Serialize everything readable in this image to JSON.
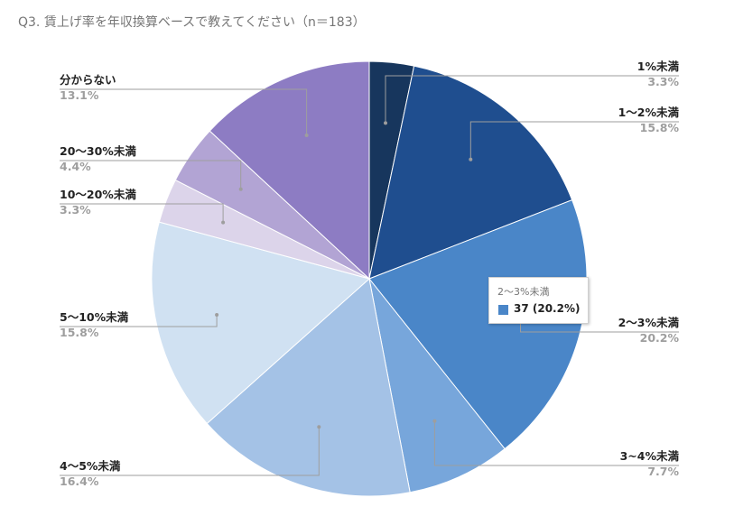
{
  "chart_data": {
    "type": "pie",
    "title": "Q3.  賃上げ率を年収換算ベースで教えてください（n＝183）",
    "n": 183,
    "slices": [
      {
        "label": "1%未満",
        "percent_label": "3.3%",
        "value": 3.3,
        "color": "#17365d"
      },
      {
        "label": "1～2%未満",
        "percent_label": "15.8%",
        "value": 15.8,
        "color": "#1f4e8f"
      },
      {
        "label": "2～3%未満",
        "percent_label": "20.2%",
        "value": 20.2,
        "color": "#4a86c8"
      },
      {
        "label": "3~4%未満",
        "percent_label": "7.7%",
        "value": 7.7,
        "color": "#77a6db"
      },
      {
        "label": "4～5%未満",
        "percent_label": "16.4%",
        "value": 16.4,
        "color": "#a4c2e6"
      },
      {
        "label": "5～10%未満",
        "percent_label": "15.8%",
        "value": 15.8,
        "color": "#d0e1f2"
      },
      {
        "label": "10～20%未満",
        "percent_label": "3.3%",
        "value": 3.3,
        "color": "#dcd4ea"
      },
      {
        "label": "20～30%未満",
        "percent_label": "4.4%",
        "value": 4.4,
        "color": "#b2a4d4"
      },
      {
        "label": "分からない",
        "percent_label": "13.1%",
        "value": 13.1,
        "color": "#8d7cc3"
      }
    ]
  },
  "tooltip": {
    "title": "2～3%未満",
    "value_text": "37 (20.2%)",
    "swatch_color": "#4a86c8"
  }
}
